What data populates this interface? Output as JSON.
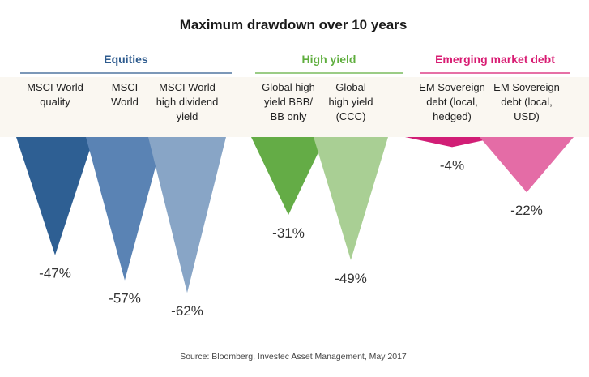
{
  "chart_data": {
    "type": "bar",
    "title": "Maximum drawdown over 10 years",
    "source": "Source: Bloomberg, Investec Asset Management, May 2017",
    "ylim": [
      -65,
      0
    ],
    "groups": [
      {
        "name": "Equities",
        "color": "#2E5B8E"
      },
      {
        "name": "High yield",
        "color": "#5FAE3E"
      },
      {
        "name": "Emerging market debt",
        "color": "#D81B72"
      }
    ],
    "categories": [
      {
        "label": [
          "MSCI World",
          "quality"
        ],
        "value": -47,
        "display": "-47%",
        "group": 0,
        "color": "#2E5F93"
      },
      {
        "label": [
          "MSCI",
          "World"
        ],
        "value": -57,
        "display": "-57%",
        "group": 0,
        "color": "#5A83B4"
      },
      {
        "label": [
          "MSCI World",
          "high dividend",
          "yield"
        ],
        "value": -62,
        "display": "-62%",
        "group": 0,
        "color": "#88A5C6"
      },
      {
        "label": [
          "Global high",
          "yield BBB/",
          "BB only"
        ],
        "value": -31,
        "display": "-31%",
        "group": 1,
        "color": "#64AC46"
      },
      {
        "label": [
          "Global",
          "high yield",
          "(CCC)"
        ],
        "value": -49,
        "display": "-49%",
        "group": 1,
        "color": "#A9CF94"
      },
      {
        "label": [
          "EM Sovereign",
          "debt (local,",
          "hedged)"
        ],
        "value": -4,
        "display": "-4%",
        "group": 2,
        "color": "#D11E76"
      },
      {
        "label": [
          "EM Sovereign",
          "debt (local,",
          "USD)"
        ],
        "value": -22,
        "display": "-22%",
        "group": 2,
        "color": "#E46CA6"
      }
    ]
  }
}
